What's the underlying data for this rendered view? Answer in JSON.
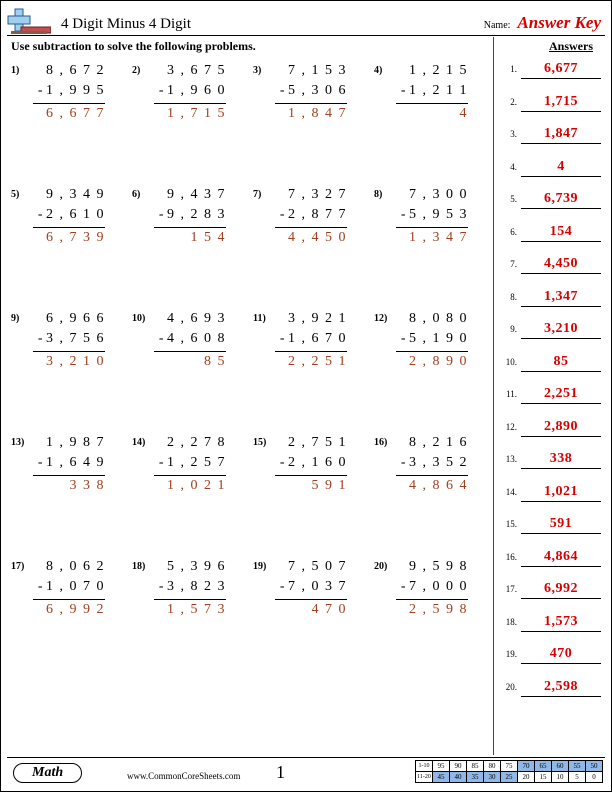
{
  "header": {
    "title": "4 Digit Minus 4 Digit",
    "name_label": "Name:",
    "answer_key": "Answer Key"
  },
  "instruction": "Use subtraction to solve the following problems.",
  "answers_header": "Answers",
  "problems": [
    {
      "n": "1)",
      "a": "8 , 6 7 2",
      "b": "1 , 9 9 5",
      "r": "6 , 6 7 7"
    },
    {
      "n": "2)",
      "a": "3 , 6 7 5",
      "b": "1 , 9 6 0",
      "r": "1 , 7 1 5"
    },
    {
      "n": "3)",
      "a": "7 , 1 5 3",
      "b": "5 , 3 0 6",
      "r": "1 , 8 4 7"
    },
    {
      "n": "4)",
      "a": "1 , 2 1 5",
      "b": "1 , 2 1 1",
      "r": "4"
    },
    {
      "n": "5)",
      "a": "9 , 3 4 9",
      "b": "2 , 6 1 0",
      "r": "6 , 7 3 9"
    },
    {
      "n": "6)",
      "a": "9 , 4 3 7",
      "b": "9 , 2 8 3",
      "r": "1 5 4"
    },
    {
      "n": "7)",
      "a": "7 , 3 2 7",
      "b": "2 , 8 7 7",
      "r": "4 , 4 5 0"
    },
    {
      "n": "8)",
      "a": "7 , 3 0 0",
      "b": "5 , 9 5 3",
      "r": "1 , 3 4 7"
    },
    {
      "n": "9)",
      "a": "6 , 9 6 6",
      "b": "3 , 7 5 6",
      "r": "3 , 2 1 0"
    },
    {
      "n": "10)",
      "a": "4 , 6 9 3",
      "b": "4 , 6 0 8",
      "r": "8 5"
    },
    {
      "n": "11)",
      "a": "3 , 9 2 1",
      "b": "1 , 6 7 0",
      "r": "2 , 2 5 1"
    },
    {
      "n": "12)",
      "a": "8 , 0 8 0",
      "b": "5 , 1 9 0",
      "r": "2 , 8 9 0"
    },
    {
      "n": "13)",
      "a": "1 , 9 8 7",
      "b": "1 , 6 4 9",
      "r": "3 3 8"
    },
    {
      "n": "14)",
      "a": "2 , 2 7 8",
      "b": "1 , 2 5 7",
      "r": "1 , 0 2 1"
    },
    {
      "n": "15)",
      "a": "2 , 7 5 1",
      "b": "2 , 1 6 0",
      "r": "5 9 1"
    },
    {
      "n": "16)",
      "a": "8 , 2 1 6",
      "b": "3 , 3 5 2",
      "r": "4 , 8 6 4"
    },
    {
      "n": "17)",
      "a": "8 , 0 6 2",
      "b": "1 , 0 7 0",
      "r": "6 , 9 9 2"
    },
    {
      "n": "18)",
      "a": "5 , 3 9 6",
      "b": "3 , 8 2 3",
      "r": "1 , 5 7 3"
    },
    {
      "n": "19)",
      "a": "7 , 5 0 7",
      "b": "7 , 0 3 7",
      "r": "4 7 0"
    },
    {
      "n": "20)",
      "a": "9 , 5 9 8",
      "b": "7 , 0 0 0",
      "r": "2 , 5 9 8"
    }
  ],
  "answers": [
    {
      "n": "1.",
      "v": "6,677"
    },
    {
      "n": "2.",
      "v": "1,715"
    },
    {
      "n": "3.",
      "v": "1,847"
    },
    {
      "n": "4.",
      "v": "4"
    },
    {
      "n": "5.",
      "v": "6,739"
    },
    {
      "n": "6.",
      "v": "154"
    },
    {
      "n": "7.",
      "v": "4,450"
    },
    {
      "n": "8.",
      "v": "1,347"
    },
    {
      "n": "9.",
      "v": "3,210"
    },
    {
      "n": "10.",
      "v": "85"
    },
    {
      "n": "11.",
      "v": "2,251"
    },
    {
      "n": "12.",
      "v": "2,890"
    },
    {
      "n": "13.",
      "v": "338"
    },
    {
      "n": "14.",
      "v": "1,021"
    },
    {
      "n": "15.",
      "v": "591"
    },
    {
      "n": "16.",
      "v": "4,864"
    },
    {
      "n": "17.",
      "v": "6,992"
    },
    {
      "n": "18.",
      "v": "1,573"
    },
    {
      "n": "19.",
      "v": "470"
    },
    {
      "n": "20.",
      "v": "2,598"
    }
  ],
  "footer": {
    "subject": "Math",
    "site": "www.CommonCoreSheets.com",
    "page": "1",
    "score": {
      "row1_label": "1-10",
      "row2_label": "11-20",
      "row1": [
        "95",
        "90",
        "85",
        "80",
        "75",
        "70",
        "65",
        "60",
        "55",
        "50"
      ],
      "row2": [
        "45",
        "40",
        "35",
        "30",
        "25",
        "20",
        "15",
        "10",
        "5",
        "0"
      ]
    }
  },
  "colors": {
    "answer_red": "#d60000",
    "result_brown": "#a04020",
    "grid_blue": "#8fb8e8",
    "icon_blue": "#9fd0f0",
    "icon_red": "#c05050",
    "icon_brown": "#8a5a44"
  }
}
